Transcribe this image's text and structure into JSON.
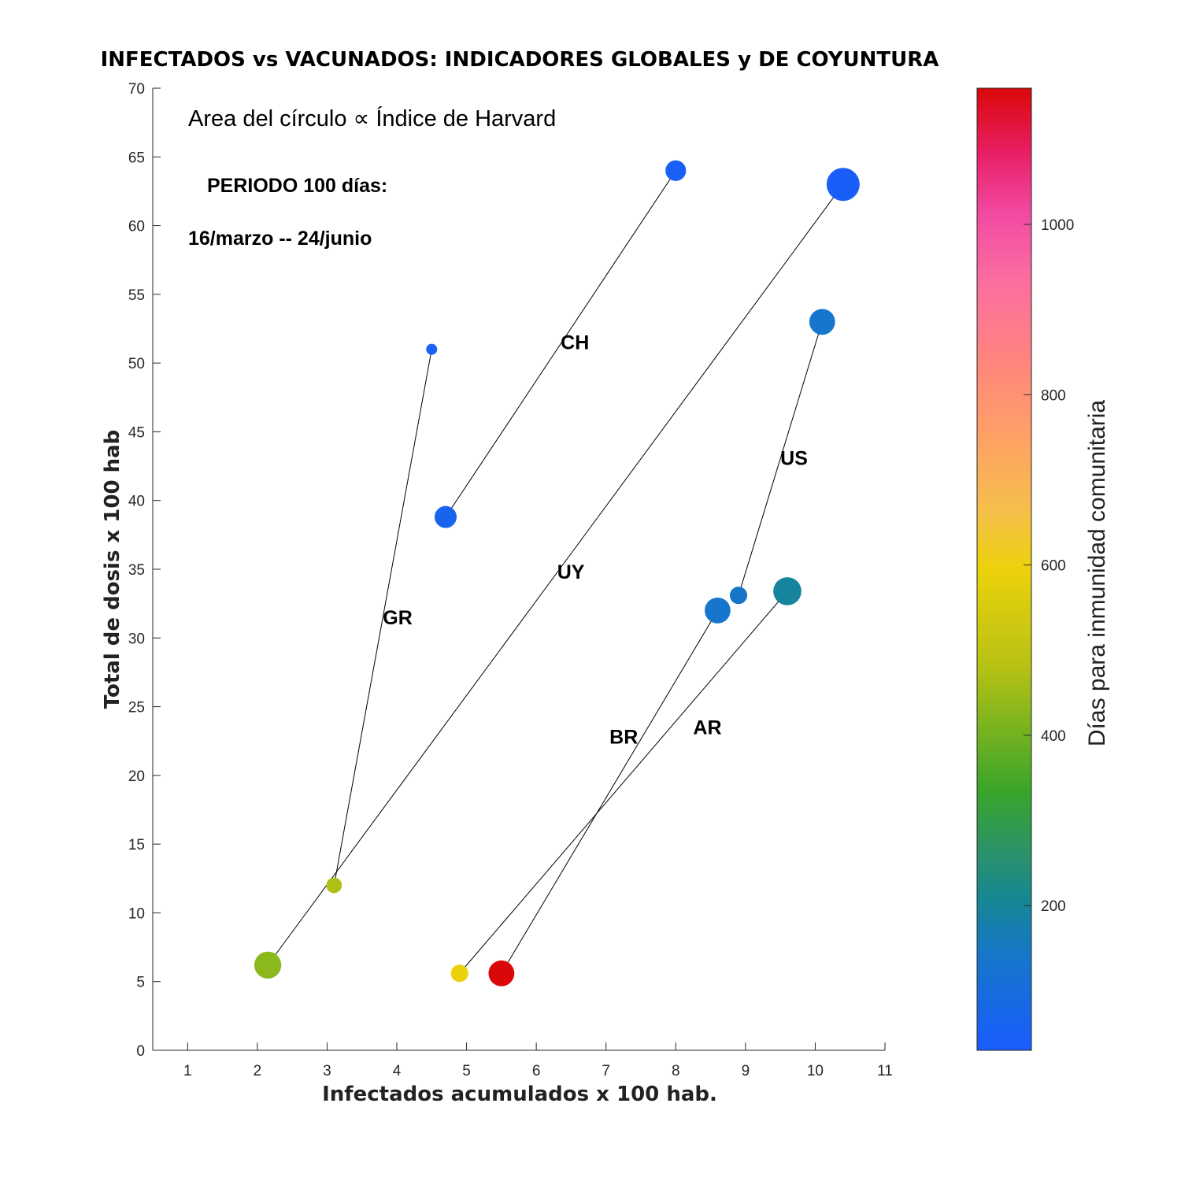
{
  "chart_data": {
    "type": "scatter",
    "title": "INFECTADOS vs VACUNADOS: INDICADORES GLOBALES y DE COYUNTURA",
    "xlabel": "Infectados acumulados x 100 hab.",
    "ylabel": "Total de dosis x 100 hab",
    "xlim": [
      0.5,
      11
    ],
    "ylim": [
      0,
      70
    ],
    "xticks": [
      1,
      2,
      3,
      4,
      5,
      6,
      7,
      8,
      9,
      10,
      11
    ],
    "yticks": [
      0,
      5,
      10,
      15,
      20,
      25,
      30,
      35,
      40,
      45,
      50,
      55,
      60,
      65,
      70
    ],
    "colorbar": {
      "label": "Días para inmunidad comunitaria",
      "range": [
        30,
        1160
      ],
      "ticks": [
        200,
        400,
        600,
        800,
        1000
      ],
      "stops": [
        {
          "v": 0.0,
          "color": "#1a5cff"
        },
        {
          "v": 0.1,
          "color": "#1677c8"
        },
        {
          "v": 0.16,
          "color": "#168890"
        },
        {
          "v": 0.2,
          "color": "#2a9070"
        },
        {
          "v": 0.27,
          "color": "#3aa52a"
        },
        {
          "v": 0.4,
          "color": "#b8c214"
        },
        {
          "v": 0.5,
          "color": "#ecd20c"
        },
        {
          "v": 0.56,
          "color": "#f5bf4a"
        },
        {
          "v": 0.64,
          "color": "#ffa066"
        },
        {
          "v": 0.72,
          "color": "#ff8480"
        },
        {
          "v": 0.8,
          "color": "#fb6ea0"
        },
        {
          "v": 0.87,
          "color": "#f24aa2"
        },
        {
          "v": 0.93,
          "color": "#e82068"
        },
        {
          "v": 1.0,
          "color": "#da0808"
        }
      ]
    },
    "annotations": {
      "legend_note": "Area del círculo ∝ Índice de Harvard",
      "period": "PERIODO 100 días:",
      "dates": "16/marzo -- 24/junio"
    },
    "series": [
      {
        "name": "GR",
        "start": {
          "x": 3.1,
          "y": 12.0,
          "days": 470,
          "size": 2
        },
        "end": {
          "x": 4.5,
          "y": 51.0,
          "days": 55,
          "size": 1
        },
        "label_pos": {
          "x": 3.8,
          "y": 31.0
        }
      },
      {
        "name": "CH",
        "start": {
          "x": 4.7,
          "y": 38.8,
          "days": 65,
          "size": 4
        },
        "end": {
          "x": 8.0,
          "y": 64.0,
          "days": 50,
          "size": 3.5
        },
        "label_pos": {
          "x": 6.35,
          "y": 51.0
        }
      },
      {
        "name": "UY",
        "start": {
          "x": 2.15,
          "y": 6.2,
          "days": 430,
          "size": 6
        },
        "end": {
          "x": 10.4,
          "y": 63.0,
          "days": 40,
          "size": 9
        },
        "label_pos": {
          "x": 6.3,
          "y": 34.3
        }
      },
      {
        "name": "US",
        "start": {
          "x": 8.9,
          "y": 33.1,
          "days": 140,
          "size": 2.5
        },
        "end": {
          "x": 10.1,
          "y": 53.0,
          "days": 135,
          "size": 5.5
        },
        "label_pos": {
          "x": 9.5,
          "y": 42.6
        }
      },
      {
        "name": "BR",
        "start": {
          "x": 5.5,
          "y": 5.6,
          "days": 1160,
          "size": 5.5
        },
        "end": {
          "x": 8.6,
          "y": 32.0,
          "days": 135,
          "size": 5.5
        },
        "label_pos": {
          "x": 7.05,
          "y": 22.3
        }
      },
      {
        "name": "AR",
        "start": {
          "x": 4.9,
          "y": 5.6,
          "days": 590,
          "size": 2.5
        },
        "end": {
          "x": 9.6,
          "y": 33.4,
          "days": 195,
          "size": 6.5
        },
        "label_pos": {
          "x": 8.25,
          "y": 23.0
        }
      }
    ]
  }
}
